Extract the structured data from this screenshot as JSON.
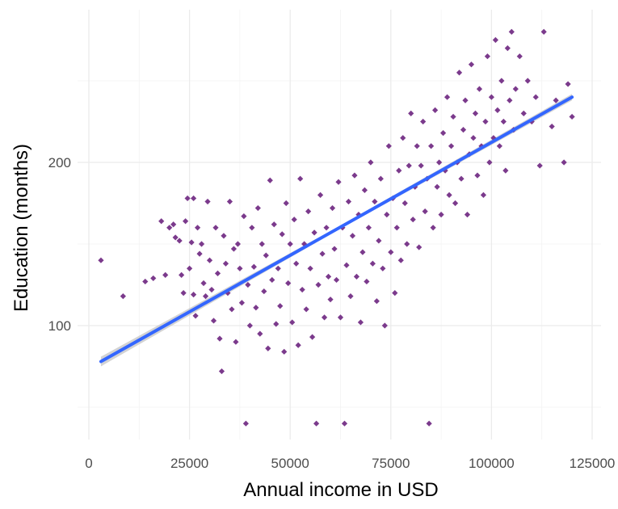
{
  "chart_data": {
    "type": "scatter",
    "title": "",
    "xlabel": "Annual income in USD",
    "ylabel": "Education (months)",
    "xlim": [
      0,
      125000
    ],
    "ylim": [
      33,
      285
    ],
    "x_ticks": [
      0,
      25000,
      50000,
      75000,
      100000,
      125000
    ],
    "x_tick_labels": [
      "0",
      "25000",
      "50000",
      "75000",
      "100000",
      "125000"
    ],
    "y_ticks": [
      100,
      200
    ],
    "y_tick_labels": [
      "100",
      "200"
    ],
    "grid": true,
    "legend": "none",
    "point_shape": "diamond",
    "point_color": "#7B3A8C",
    "trend_color": "#3366FF",
    "ribbon_color": "#C4C4C4",
    "trend": {
      "x": [
        3000,
        120000
      ],
      "y": [
        78,
        240
      ]
    },
    "series": [
      {
        "points": [
          [
            3000,
            140
          ],
          [
            8500,
            118
          ],
          [
            14000,
            127
          ],
          [
            16000,
            129
          ],
          [
            18000,
            164
          ],
          [
            19000,
            131
          ],
          [
            20000,
            160
          ],
          [
            21000,
            162
          ],
          [
            21500,
            154
          ],
          [
            22500,
            152
          ],
          [
            23000,
            131
          ],
          [
            23500,
            120
          ],
          [
            24000,
            164
          ],
          [
            24500,
            178
          ],
          [
            25000,
            135
          ],
          [
            25500,
            151
          ],
          [
            26000,
            119
          ],
          [
            26000,
            178
          ],
          [
            26500,
            106
          ],
          [
            27000,
            160
          ],
          [
            27500,
            144
          ],
          [
            28000,
            150
          ],
          [
            28500,
            126
          ],
          [
            29000,
            118
          ],
          [
            29500,
            176
          ],
          [
            30000,
            140
          ],
          [
            30500,
            122
          ],
          [
            31000,
            103
          ],
          [
            31500,
            160
          ],
          [
            32000,
            132
          ],
          [
            32500,
            92
          ],
          [
            33000,
            72
          ],
          [
            33500,
            155
          ],
          [
            34000,
            138
          ],
          [
            34500,
            120
          ],
          [
            35000,
            176
          ],
          [
            35500,
            110
          ],
          [
            36000,
            147
          ],
          [
            36500,
            90
          ],
          [
            37000,
            150
          ],
          [
            37500,
            135
          ],
          [
            38000,
            114
          ],
          [
            38500,
            167
          ],
          [
            39000,
            40
          ],
          [
            39500,
            125
          ],
          [
            40000,
            100
          ],
          [
            40500,
            160
          ],
          [
            41000,
            136
          ],
          [
            41500,
            111
          ],
          [
            42000,
            172
          ],
          [
            42500,
            95
          ],
          [
            43000,
            150
          ],
          [
            43500,
            121
          ],
          [
            44000,
            143
          ],
          [
            44500,
            86
          ],
          [
            45000,
            189
          ],
          [
            45500,
            128
          ],
          [
            46000,
            162
          ],
          [
            46500,
            101
          ],
          [
            47000,
            135
          ],
          [
            47500,
            112
          ],
          [
            48000,
            156
          ],
          [
            48500,
            84
          ],
          [
            49000,
            175
          ],
          [
            49500,
            126
          ],
          [
            50000,
            150
          ],
          [
            50500,
            102
          ],
          [
            51000,
            165
          ],
          [
            51500,
            138
          ],
          [
            52000,
            88
          ],
          [
            52500,
            190
          ],
          [
            53000,
            122
          ],
          [
            53500,
            150
          ],
          [
            54000,
            110
          ],
          [
            54500,
            170
          ],
          [
            55000,
            135
          ],
          [
            55500,
            93
          ],
          [
            56000,
            157
          ],
          [
            56500,
            40
          ],
          [
            57000,
            125
          ],
          [
            57500,
            180
          ],
          [
            58000,
            144
          ],
          [
            58500,
            105
          ],
          [
            59000,
            160
          ],
          [
            59500,
            130
          ],
          [
            60000,
            116
          ],
          [
            60500,
            172
          ],
          [
            61000,
            147
          ],
          [
            61500,
            128
          ],
          [
            62000,
            188
          ],
          [
            62500,
            105
          ],
          [
            63000,
            160
          ],
          [
            63500,
            40
          ],
          [
            64000,
            137
          ],
          [
            64500,
            176
          ],
          [
            65000,
            118
          ],
          [
            65500,
            155
          ],
          [
            66000,
            192
          ],
          [
            66500,
            130
          ],
          [
            67000,
            168
          ],
          [
            67500,
            102
          ],
          [
            68000,
            145
          ],
          [
            68500,
            183
          ],
          [
            69000,
            127
          ],
          [
            69500,
            160
          ],
          [
            70000,
            200
          ],
          [
            70500,
            138
          ],
          [
            71000,
            176
          ],
          [
            71500,
            115
          ],
          [
            72000,
            152
          ],
          [
            72500,
            190
          ],
          [
            73000,
            135
          ],
          [
            73500,
            100
          ],
          [
            74000,
            168
          ],
          [
            74500,
            210
          ],
          [
            75000,
            145
          ],
          [
            75500,
            178
          ],
          [
            76000,
            120
          ],
          [
            76500,
            160
          ],
          [
            77000,
            195
          ],
          [
            77500,
            140
          ],
          [
            78000,
            215
          ],
          [
            78500,
            175
          ],
          [
            79000,
            150
          ],
          [
            79500,
            198
          ],
          [
            80000,
            230
          ],
          [
            80500,
            165
          ],
          [
            81000,
            185
          ],
          [
            81500,
            210
          ],
          [
            82000,
            148
          ],
          [
            82500,
            198
          ],
          [
            83000,
            225
          ],
          [
            83500,
            170
          ],
          [
            84000,
            190
          ],
          [
            84500,
            40
          ],
          [
            85000,
            210
          ],
          [
            85500,
            160
          ],
          [
            86000,
            232
          ],
          [
            86500,
            185
          ],
          [
            87000,
            200
          ],
          [
            87500,
            168
          ],
          [
            88000,
            218
          ],
          [
            88500,
            195
          ],
          [
            89000,
            240
          ],
          [
            89500,
            180
          ],
          [
            90000,
            210
          ],
          [
            90500,
            228
          ],
          [
            91000,
            175
          ],
          [
            91500,
            200
          ],
          [
            92000,
            255
          ],
          [
            92500,
            190
          ],
          [
            93000,
            220
          ],
          [
            93500,
            238
          ],
          [
            94000,
            168
          ],
          [
            94500,
            205
          ],
          [
            95000,
            260
          ],
          [
            95500,
            215
          ],
          [
            96000,
            230
          ],
          [
            96500,
            192
          ],
          [
            97000,
            245
          ],
          [
            97500,
            210
          ],
          [
            98000,
            180
          ],
          [
            98500,
            225
          ],
          [
            99000,
            265
          ],
          [
            99500,
            200
          ],
          [
            100000,
            240
          ],
          [
            100500,
            215
          ],
          [
            101000,
            275
          ],
          [
            101500,
            232
          ],
          [
            102000,
            210
          ],
          [
            102500,
            250
          ],
          [
            103000,
            225
          ],
          [
            103500,
            195
          ],
          [
            104000,
            270
          ],
          [
            104500,
            238
          ],
          [
            105000,
            280
          ],
          [
            105500,
            220
          ],
          [
            106000,
            245
          ],
          [
            107000,
            265
          ],
          [
            108000,
            230
          ],
          [
            109000,
            250
          ],
          [
            110000,
            225
          ],
          [
            111000,
            240
          ],
          [
            112000,
            198
          ],
          [
            113000,
            280
          ],
          [
            115000,
            222
          ],
          [
            116000,
            238
          ],
          [
            118000,
            200
          ],
          [
            119000,
            248
          ],
          [
            120000,
            228
          ]
        ]
      }
    ]
  }
}
